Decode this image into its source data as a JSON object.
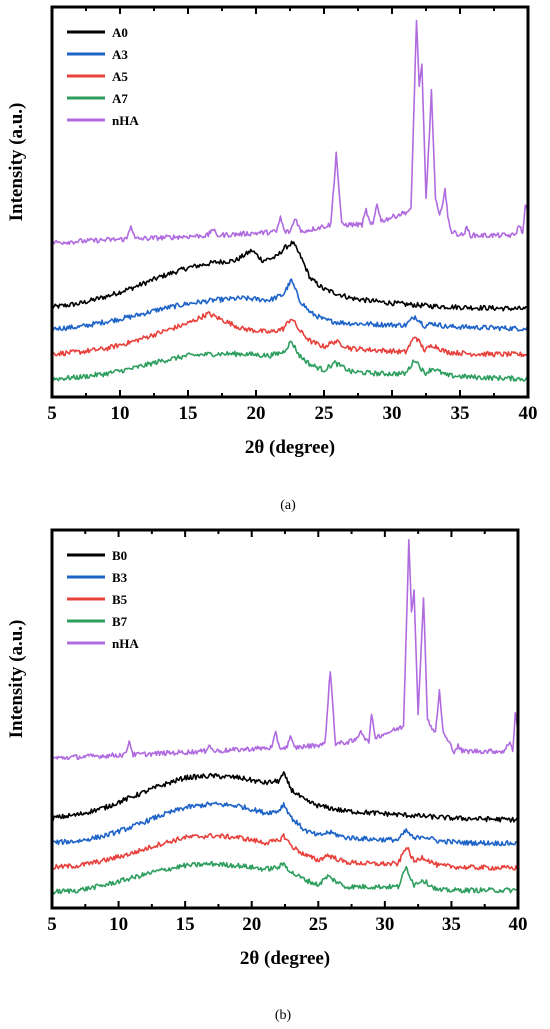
{
  "chart_data": [
    {
      "type": "line",
      "xlabel": "2θ (degree)",
      "ylabel": "Intensity (a.u.)",
      "caption": "(a)",
      "xlim": [
        5,
        40
      ],
      "xticks": [
        5,
        10,
        15,
        20,
        25,
        30,
        35,
        40
      ],
      "ylim": [
        0,
        100
      ],
      "yticks_shown": false,
      "legend_position": "top-left",
      "series": [
        {
          "name": "A0",
          "color": "#000000",
          "x": [
            5,
            7,
            9,
            11,
            13,
            15,
            17,
            18.5,
            19.7,
            20.5,
            21.5,
            22.1,
            22.7,
            23.3,
            24,
            25,
            27,
            29,
            31,
            33,
            35,
            37,
            40
          ],
          "y": [
            20,
            21,
            23,
            25.5,
            28.5,
            31,
            32.5,
            33,
            35.8,
            33,
            34,
            36.5,
            38,
            34,
            28,
            25,
            22.5,
            21.5,
            20.8,
            20.3,
            20,
            19.8,
            19.5
          ]
        },
        {
          "name": "A3",
          "color": "#1e64c8",
          "x": [
            5,
            7,
            9,
            11,
            13,
            15,
            17,
            19,
            21,
            22,
            22.6,
            23.2,
            24,
            25,
            26,
            27,
            29,
            31,
            31.7,
            32.4,
            33,
            34,
            36,
            40
          ],
          "y": [
            14,
            14.5,
            16,
            17.5,
            19.5,
            21,
            22,
            22.5,
            22,
            23.5,
            27.5,
            22,
            18.5,
            16.5,
            15.8,
            15.5,
            15.2,
            15,
            17.5,
            14.8,
            15.5,
            14.6,
            14.4,
            14
          ]
        },
        {
          "name": "A5",
          "color": "#e8413c",
          "x": [
            5,
            7,
            9,
            11,
            13,
            15,
            16.5,
            17.5,
            19,
            21,
            22,
            22.6,
            23.2,
            24,
            25,
            25.8,
            27,
            29,
            31,
            31.7,
            32.4,
            33,
            34,
            36,
            40
          ],
          "y": [
            7,
            7.5,
            8.5,
            10.5,
            13,
            15.5,
            18.2,
            16.5,
            14,
            13,
            14,
            17,
            13.5,
            10.5,
            9,
            10.5,
            8.5,
            8,
            7.5,
            12,
            8,
            9.5,
            7.5,
            7,
            6.8
          ]
        },
        {
          "name": "A7",
          "color": "#2e9e5e",
          "x": [
            5,
            7,
            9,
            11,
            13,
            15,
            17,
            19,
            21,
            22,
            22.6,
            23.2,
            24,
            25,
            25.8,
            27,
            29,
            31,
            31.7,
            32.4,
            33,
            34,
            36,
            40
          ],
          "y": [
            0,
            0.5,
            1.5,
            3,
            5,
            6.5,
            7,
            7,
            6.5,
            7.5,
            10.5,
            6.5,
            4,
            2.5,
            4.5,
            2,
            1.5,
            1.5,
            5.5,
            1.5,
            3,
            1,
            0.5,
            0
          ]
        },
        {
          "name": "nHA",
          "color": "#b06be0",
          "x": [
            5,
            10.5,
            10.8,
            11.1,
            16.5,
            16.8,
            17.1,
            21.5,
            21.8,
            22.1,
            22.5,
            22.9,
            23.3,
            25.5,
            25.9,
            26.3,
            27.8,
            28.1,
            28.4,
            28.6,
            28.9,
            29.2,
            31.4,
            31.8,
            32.0,
            32.2,
            32.5,
            32.9,
            33.2,
            33.5,
            33.9,
            34.1,
            34.4,
            35.2,
            35.5,
            35.8,
            39.0,
            39.4,
            39.6,
            39.8,
            40
          ],
          "y": [
            38,
            39,
            43,
            39,
            40,
            42,
            40,
            41,
            45,
            41,
            41,
            45,
            41,
            43,
            63,
            43,
            43,
            47,
            43,
            43,
            49,
            44,
            47,
            100,
            82,
            87,
            50,
            80,
            50,
            45,
            53,
            45,
            41,
            40,
            42,
            40,
            40,
            43,
            40,
            49,
            46
          ]
        }
      ]
    },
    {
      "type": "line",
      "xlabel": "2θ (degree)",
      "ylabel": "Intensity (a.u.)",
      "caption": "(b)",
      "xlim": [
        5,
        40
      ],
      "xticks": [
        5,
        10,
        15,
        20,
        25,
        30,
        35,
        40
      ],
      "ylim": [
        0,
        100
      ],
      "yticks_shown": false,
      "legend_position": "top-left",
      "series": [
        {
          "name": "B0",
          "color": "#000000",
          "x": [
            5,
            7,
            9,
            11,
            13,
            15,
            17,
            19,
            21,
            22,
            22.4,
            23,
            24,
            25,
            27,
            29,
            31,
            33,
            35,
            37,
            40
          ],
          "y": [
            21,
            22,
            24,
            27,
            30,
            32.5,
            33,
            32.5,
            31,
            31.5,
            33.5,
            29,
            26,
            24.5,
            23,
            22.5,
            22,
            21.5,
            21,
            20.8,
            20.5
          ]
        },
        {
          "name": "B3",
          "color": "#1e64c8",
          "x": [
            5,
            7,
            9,
            11,
            13,
            15,
            17,
            19,
            21,
            22,
            22.4,
            23,
            24,
            25,
            25.8,
            27,
            29,
            31,
            31.6,
            32.2,
            32.8,
            34,
            36,
            40
          ],
          "y": [
            14,
            14.5,
            16,
            18.5,
            21.5,
            24,
            25,
            24.5,
            22.5,
            23,
            25,
            21,
            17.5,
            16,
            17,
            15.5,
            15,
            14.8,
            17.5,
            15,
            16,
            14.5,
            14,
            13.8
          ]
        },
        {
          "name": "B5",
          "color": "#e8413c",
          "x": [
            5,
            7,
            9,
            11,
            13,
            15,
            17,
            19,
            21,
            22,
            22.4,
            23,
            24,
            25,
            25.7,
            27,
            29,
            31,
            31.6,
            32.2,
            32.8,
            34,
            36,
            40
          ],
          "y": [
            7,
            7.5,
            9,
            11,
            13.5,
            15.5,
            16,
            15.5,
            14,
            14.5,
            16,
            13,
            10.5,
            9,
            10.5,
            8.5,
            8,
            8,
            13,
            8.5,
            10,
            7.5,
            7,
            6.8
          ]
        },
        {
          "name": "B7",
          "color": "#2e9e5e",
          "x": [
            5,
            7,
            9,
            11,
            13,
            15,
            17,
            19,
            21,
            22,
            22.4,
            23,
            24,
            25,
            25.7,
            27,
            29,
            31,
            31.6,
            32.2,
            32.8,
            34,
            36,
            40
          ],
          "y": [
            0,
            0.5,
            2,
            4,
            6,
            7.5,
            8,
            7.5,
            6.5,
            7,
            8,
            5.5,
            3.5,
            2,
            4.5,
            1.5,
            1.5,
            1.5,
            7,
            2,
            3.5,
            0.5,
            0.5,
            0.5
          ]
        },
        {
          "name": "nHA",
          "color": "#b06be0",
          "x": [
            5,
            10.5,
            10.8,
            11.1,
            16.5,
            16.8,
            17.1,
            21.5,
            21.8,
            22.1,
            22.6,
            22.9,
            23.2,
            25.5,
            25.9,
            26.3,
            27.8,
            28.2,
            28.6,
            28.8,
            29.0,
            29.3,
            31.4,
            31.8,
            32.0,
            32.2,
            32.5,
            32.9,
            33.2,
            33.8,
            34.1,
            34.4,
            35.2,
            35.5,
            35.8,
            39.0,
            39.4,
            39.6,
            39.8,
            40
          ],
          "y": [
            38,
            39,
            43,
            39,
            40,
            42,
            40,
            41,
            45,
            41,
            41,
            44,
            41,
            42,
            63,
            42,
            43,
            46,
            43,
            43,
            50,
            44,
            47,
            100,
            80,
            86,
            50,
            84,
            49,
            45,
            57,
            45,
            40,
            41.5,
            40,
            40,
            43,
            40,
            51,
            46
          ]
        }
      ]
    }
  ]
}
